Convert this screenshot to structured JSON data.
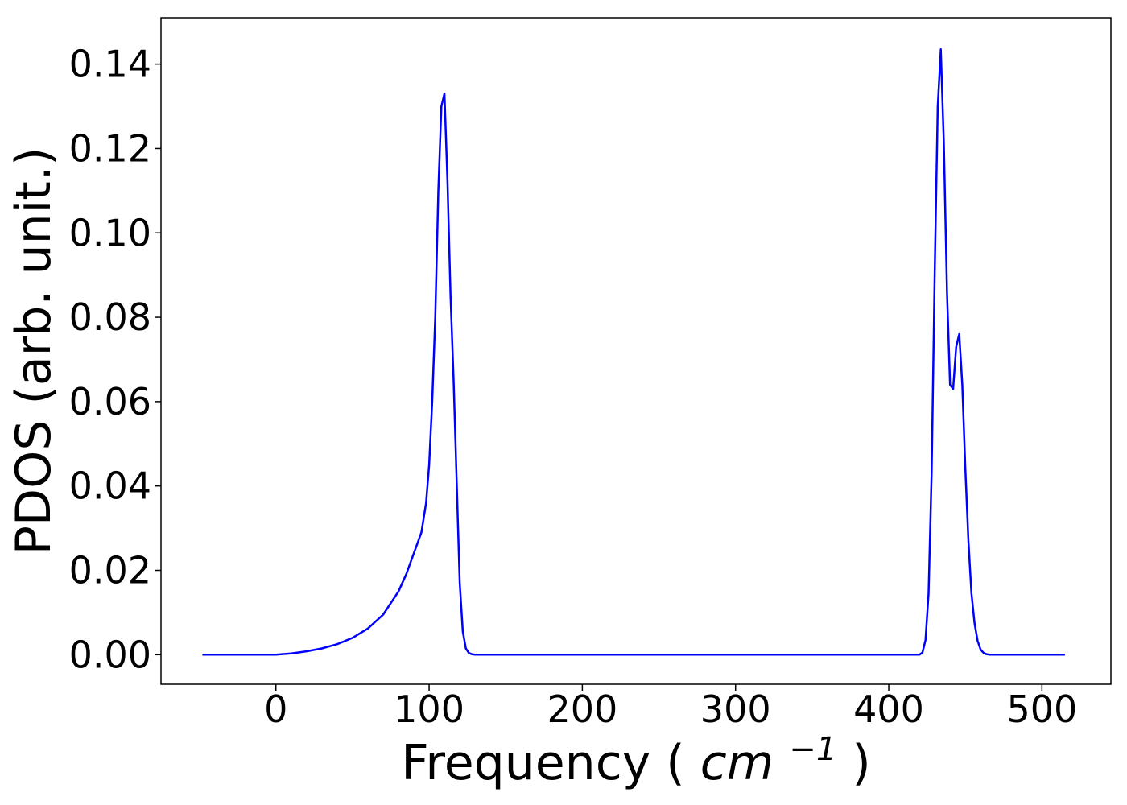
{
  "chart_data": {
    "type": "line",
    "title": "",
    "xlabel": "Frequency",
    "xlabel_paren_open": "(",
    "xlabel_unit_base": "cm",
    "xlabel_unit_exponent": "−1",
    "xlabel_paren_close": ")",
    "ylabel": "PDOS (arb. unit.)",
    "xlim": [
      -75,
      545
    ],
    "ylim": [
      -0.007,
      0.151
    ],
    "xticks": [
      0,
      100,
      200,
      300,
      400,
      500
    ],
    "xtick_labels": [
      "0",
      "100",
      "200",
      "300",
      "400",
      "500"
    ],
    "yticks": [
      0.0,
      0.02,
      0.04,
      0.06,
      0.08,
      0.1,
      0.12,
      0.14
    ],
    "ytick_labels": [
      "0.00",
      "0.02",
      "0.04",
      "0.06",
      "0.08",
      "0.10",
      "0.12",
      "0.14"
    ],
    "grid": false,
    "series": [
      {
        "color": "#0000ff",
        "x": [
          -48,
          0,
          10,
          20,
          30,
          40,
          50,
          60,
          70,
          80,
          85,
          90,
          95,
          98,
          100,
          102,
          104,
          106,
          108,
          110,
          112,
          114,
          116,
          118,
          120,
          122,
          124,
          126,
          128,
          130,
          132,
          134,
          136,
          138,
          140,
          145,
          200,
          300,
          400,
          415,
          418,
          420,
          422,
          424,
          426,
          428,
          430,
          432,
          434,
          436,
          438,
          440,
          442,
          444,
          446,
          448,
          450,
          452,
          454,
          456,
          458,
          460,
          462,
          464,
          466,
          468,
          470,
          472,
          474,
          476,
          478,
          480,
          485,
          490,
          515
        ],
        "y": [
          0.0,
          0.0,
          0.0003,
          0.0008,
          0.0015,
          0.0025,
          0.004,
          0.0062,
          0.0095,
          0.015,
          0.019,
          0.024,
          0.029,
          0.036,
          0.045,
          0.06,
          0.08,
          0.11,
          0.13,
          0.133,
          0.112,
          0.085,
          0.065,
          0.041,
          0.017,
          0.0055,
          0.0015,
          0.0004,
          0.0001,
          0.0,
          0.0,
          0.0,
          0.0,
          0.0,
          0.0,
          0.0,
          0.0,
          0.0,
          0.0,
          0.0,
          0.0,
          0.0,
          0.0005,
          0.0035,
          0.0145,
          0.043,
          0.09,
          0.13,
          0.1435,
          0.121,
          0.086,
          0.064,
          0.063,
          0.073,
          0.076,
          0.064,
          0.044,
          0.027,
          0.0145,
          0.0075,
          0.0033,
          0.0012,
          0.0004,
          0.0001,
          0.0,
          0.0,
          0.0,
          0.0,
          0.0,
          0.0,
          0.0,
          0.0,
          0.0,
          0.0,
          0.0
        ]
      }
    ]
  }
}
